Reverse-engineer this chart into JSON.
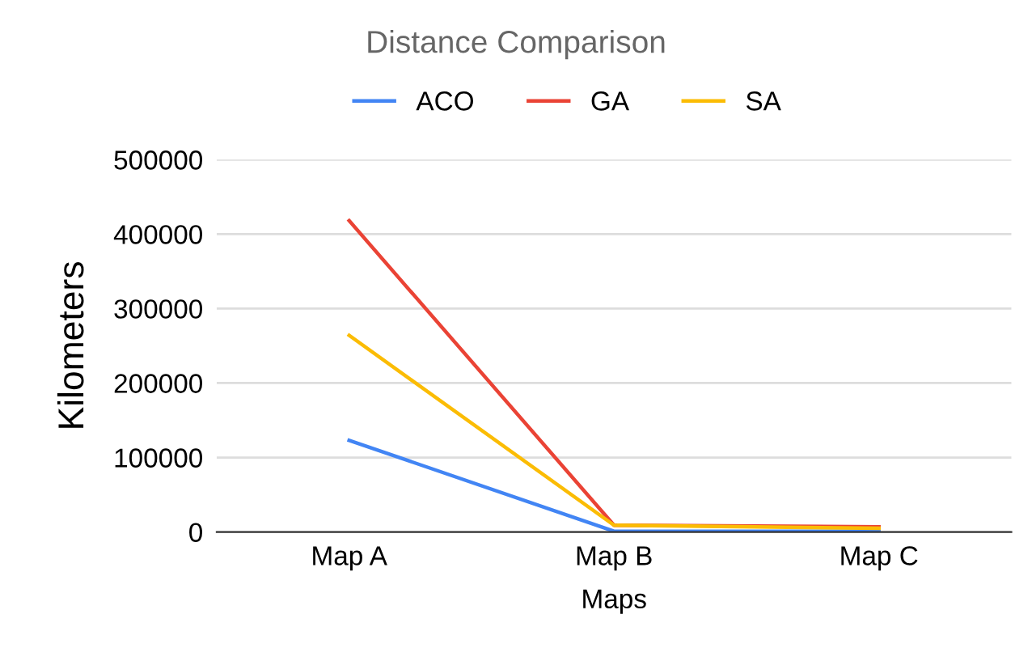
{
  "chart_data": {
    "type": "line",
    "title": "Distance Comparison",
    "xlabel": "Maps",
    "ylabel": "Kilometers",
    "categories": [
      "Map A",
      "Map B",
      "Map C"
    ],
    "series": [
      {
        "name": "ACO",
        "color": "#4285f4",
        "values": [
          123000,
          1000,
          1000
        ]
      },
      {
        "name": "GA",
        "color": "#ea4335",
        "values": [
          418000,
          9000,
          7000
        ]
      },
      {
        "name": "SA",
        "color": "#fbbc04",
        "values": [
          264000,
          9000,
          5000
        ]
      }
    ],
    "ylim": [
      0,
      500000
    ],
    "yticks": [
      0,
      100000,
      200000,
      300000,
      400000,
      500000
    ],
    "grid": "y",
    "legend": "top",
    "marker": "none",
    "line_style": "solid"
  }
}
